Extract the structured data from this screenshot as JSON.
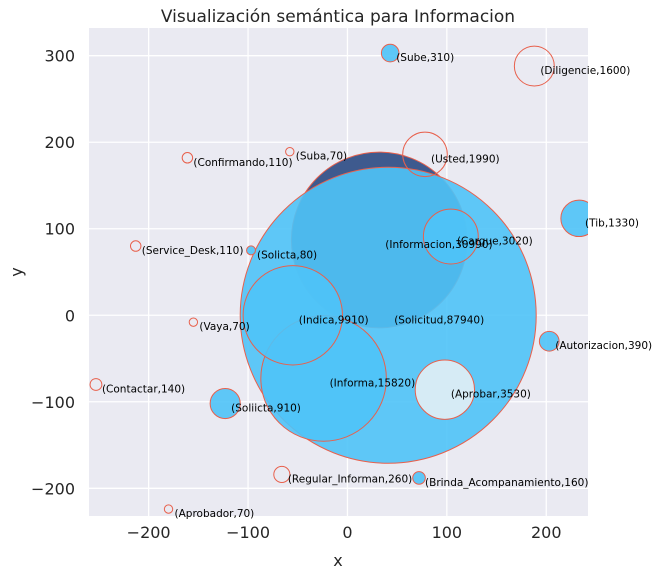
{
  "chart_data": {
    "type": "scatter",
    "title": "Visualización semántica para Informacion",
    "xlabel": "x",
    "ylabel": "y",
    "xlim": [
      -260,
      242
    ],
    "ylim": [
      -232,
      332
    ],
    "xticks": [
      -200,
      -100,
      0,
      100,
      200
    ],
    "yticks": [
      -200,
      -100,
      0,
      100,
      200,
      300
    ],
    "tick_labels_x": [
      "−200",
      "−100",
      "0",
      "100",
      "200"
    ],
    "tick_labels_y": [
      "−200",
      "−100",
      "0",
      "100",
      "200",
      "300"
    ],
    "grid": true,
    "colors": {
      "background": "#eaeaf2",
      "grid": "#ffffff",
      "fill_blue": "#4fc3f7",
      "fill_light": "#d6ebf5",
      "fill_dark": "#3e5a8e",
      "edge": "#e8604c"
    },
    "points": [
      {
        "label": "(Informacion,30990)",
        "x": 32,
        "y": 87,
        "size": 30990,
        "fill": "dark"
      },
      {
        "label": "(Solicitud,87940)",
        "x": 41,
        "y": 0,
        "size": 87940,
        "fill": "blue"
      },
      {
        "label": "(Informa,15820)",
        "x": -24,
        "y": -73,
        "size": 15820,
        "fill": "blue"
      },
      {
        "label": "(Indica,9910)",
        "x": -55,
        "y": 0,
        "size": 9910,
        "fill": "blue"
      },
      {
        "label": "(Cargue,3020)",
        "x": 104,
        "y": 91,
        "size": 3020,
        "fill": "blue"
      },
      {
        "label": "(Aprobar,3530)",
        "x": 98,
        "y": -86,
        "size": 3530,
        "fill": "light"
      },
      {
        "label": "(Usted,1990)",
        "x": 78,
        "y": 186,
        "size": 1990,
        "fill": "none"
      },
      {
        "label": "(Diligencie,1600)",
        "x": 188,
        "y": 288,
        "size": 1600,
        "fill": "none"
      },
      {
        "label": "(Tib,1330)",
        "x": 233,
        "y": 112,
        "size": 1330,
        "fill": "blue"
      },
      {
        "label": "(Soliicta,910)",
        "x": -123,
        "y": -102,
        "size": 910,
        "fill": "blue"
      },
      {
        "label": "(Autorizacion,390)",
        "x": 203,
        "y": -30,
        "size": 390,
        "fill": "blue"
      },
      {
        "label": "(Sube,310)",
        "x": 43,
        "y": 303,
        "size": 310,
        "fill": "blue"
      },
      {
        "label": "(Regular_Informan,260)",
        "x": -66,
        "y": -184,
        "size": 260,
        "fill": "none"
      },
      {
        "label": "(Brinda_Acompanamiento,160)",
        "x": 72,
        "y": -188,
        "size": 160,
        "fill": "blue"
      },
      {
        "label": "(Contactar,140)",
        "x": -253,
        "y": -80,
        "size": 140,
        "fill": "none"
      },
      {
        "label": "(Confirmando,110)",
        "x": -161,
        "y": 182,
        "size": 110,
        "fill": "none"
      },
      {
        "label": "(Service_Desk,110)",
        "x": -213,
        "y": 80,
        "size": 110,
        "fill": "none"
      },
      {
        "label": "(Solicta,80)",
        "x": -97,
        "y": 75,
        "size": 80,
        "fill": "blue"
      },
      {
        "label": "(Suba,70)",
        "x": -58,
        "y": 189,
        "size": 70,
        "fill": "none"
      },
      {
        "label": "(Vaya,70)",
        "x": -155,
        "y": -8,
        "size": 70,
        "fill": "none"
      },
      {
        "label": "(Aprobador,70)",
        "x": -180,
        "y": -224,
        "size": 70,
        "fill": "none"
      }
    ]
  }
}
